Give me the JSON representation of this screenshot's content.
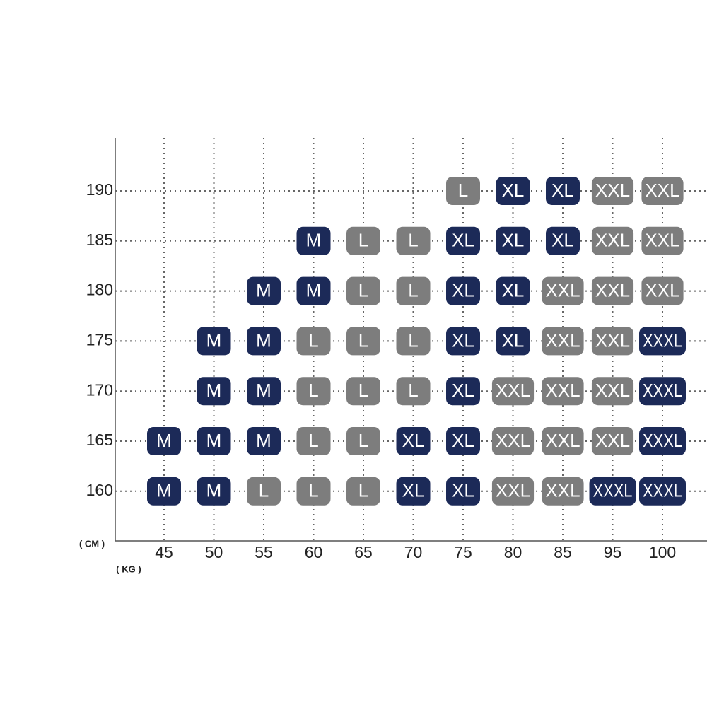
{
  "y_unit": "( CM )",
  "x_unit": "( KG )",
  "columns": [
    "45",
    "50",
    "55",
    "60",
    "65",
    "70",
    "75",
    "80",
    "85",
    "95",
    "100"
  ],
  "rows": [
    {
      "height": "190",
      "cells": [
        null,
        null,
        null,
        null,
        null,
        null,
        {
          "label": "L",
          "color": "#7d7d7d"
        },
        {
          "label": "XL",
          "color": "#1c2a58"
        },
        {
          "label": "XL",
          "color": "#1c2a58"
        },
        {
          "label": "XXL",
          "color": "#7d7d7d"
        },
        {
          "label": "XXL",
          "color": "#7d7d7d"
        }
      ]
    },
    {
      "height": "185",
      "cells": [
        null,
        null,
        null,
        {
          "label": "M",
          "color": "#1c2a58"
        },
        {
          "label": "L",
          "color": "#7d7d7d"
        },
        {
          "label": "L",
          "color": "#7d7d7d"
        },
        {
          "label": "XL",
          "color": "#1c2a58"
        },
        {
          "label": "XL",
          "color": "#1c2a58"
        },
        {
          "label": "XL",
          "color": "#1c2a58"
        },
        {
          "label": "XXL",
          "color": "#7d7d7d"
        },
        {
          "label": "XXL",
          "color": "#7d7d7d"
        }
      ]
    },
    {
      "height": "180",
      "cells": [
        null,
        null,
        {
          "label": "M",
          "color": "#1c2a58"
        },
        {
          "label": "M",
          "color": "#1c2a58"
        },
        {
          "label": "L",
          "color": "#7d7d7d"
        },
        {
          "label": "L",
          "color": "#7d7d7d"
        },
        {
          "label": "XL",
          "color": "#1c2a58"
        },
        {
          "label": "XL",
          "color": "#1c2a58"
        },
        {
          "label": "XXL",
          "color": "#7d7d7d"
        },
        {
          "label": "XXL",
          "color": "#7d7d7d"
        },
        {
          "label": "XXL",
          "color": "#7d7d7d"
        }
      ]
    },
    {
      "height": "175",
      "cells": [
        null,
        {
          "label": "M",
          "color": "#1c2a58"
        },
        {
          "label": "M",
          "color": "#1c2a58"
        },
        {
          "label": "L",
          "color": "#7d7d7d"
        },
        {
          "label": "L",
          "color": "#7d7d7d"
        },
        {
          "label": "L",
          "color": "#7d7d7d"
        },
        {
          "label": "XL",
          "color": "#1c2a58"
        },
        {
          "label": "XL",
          "color": "#1c2a58"
        },
        {
          "label": "XXL",
          "color": "#7d7d7d"
        },
        {
          "label": "XXL",
          "color": "#7d7d7d"
        },
        {
          "label": "XXXL",
          "color": "#1c2a58"
        }
      ]
    },
    {
      "height": "170",
      "cells": [
        null,
        {
          "label": "M",
          "color": "#1c2a58"
        },
        {
          "label": "M",
          "color": "#1c2a58"
        },
        {
          "label": "L",
          "color": "#7d7d7d"
        },
        {
          "label": "L",
          "color": "#7d7d7d"
        },
        {
          "label": "L",
          "color": "#7d7d7d"
        },
        {
          "label": "XL",
          "color": "#1c2a58"
        },
        {
          "label": "XXL",
          "color": "#7d7d7d"
        },
        {
          "label": "XXL",
          "color": "#7d7d7d"
        },
        {
          "label": "XXL",
          "color": "#7d7d7d"
        },
        {
          "label": "XXXL",
          "color": "#1c2a58"
        }
      ]
    },
    {
      "height": "165",
      "cells": [
        {
          "label": "M",
          "color": "#1c2a58"
        },
        {
          "label": "M",
          "color": "#1c2a58"
        },
        {
          "label": "M",
          "color": "#1c2a58"
        },
        {
          "label": "L",
          "color": "#7d7d7d"
        },
        {
          "label": "L",
          "color": "#7d7d7d"
        },
        {
          "label": "XL",
          "color": "#1c2a58"
        },
        {
          "label": "XL",
          "color": "#1c2a58"
        },
        {
          "label": "XXL",
          "color": "#7d7d7d"
        },
        {
          "label": "XXL",
          "color": "#7d7d7d"
        },
        {
          "label": "XXL",
          "color": "#7d7d7d"
        },
        {
          "label": "XXXL",
          "color": "#1c2a58"
        }
      ]
    },
    {
      "height": "160",
      "cells": [
        {
          "label": "M",
          "color": "#1c2a58"
        },
        {
          "label": "M",
          "color": "#1c2a58"
        },
        {
          "label": "L",
          "color": "#7d7d7d"
        },
        {
          "label": "L",
          "color": "#7d7d7d"
        },
        {
          "label": "L",
          "color": "#7d7d7d"
        },
        {
          "label": "XL",
          "color": "#1c2a58"
        },
        {
          "label": "XL",
          "color": "#1c2a58"
        },
        {
          "label": "XXL",
          "color": "#7d7d7d"
        },
        {
          "label": "XXL",
          "color": "#7d7d7d"
        },
        {
          "label": "XXXL",
          "color": "#1c2a58"
        },
        {
          "label": "XXXL",
          "color": "#1c2a58"
        }
      ]
    }
  ]
}
